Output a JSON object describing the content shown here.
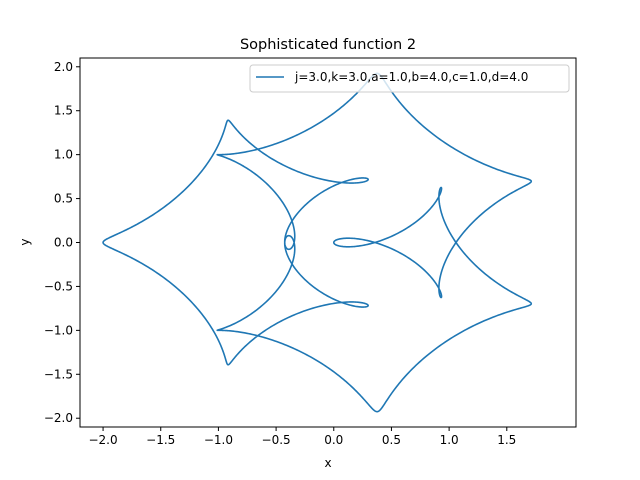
{
  "chart_data": {
    "type": "line",
    "title": "Sophisticated function 2",
    "xlabel": "x",
    "ylabel": "y",
    "xlim": [
      -2.2,
      2.1
    ],
    "ylim": [
      -2.1,
      2.1
    ],
    "xticks": [
      -2.0,
      -1.5,
      -1.0,
      -0.5,
      0.0,
      0.5,
      1.0,
      1.5
    ],
    "xtick_labels": [
      "−2.0",
      "−1.5",
      "−1.0",
      "−0.5",
      "0.0",
      "0.5",
      "1.0",
      "1.5"
    ],
    "yticks": [
      -2.0,
      -1.5,
      -1.0,
      -0.5,
      0.0,
      0.5,
      1.0,
      1.5,
      2.0
    ],
    "ytick_labels": [
      "−2.0",
      "−1.5",
      "−1.0",
      "−0.5",
      "0.0",
      "0.5",
      "1.0",
      "1.5",
      "2.0"
    ],
    "grid": false,
    "legend": "top-right",
    "series": [
      {
        "name": "j=3.0,k=3.0,a=1.0,b=4.0,c=1.0,d=4.0",
        "color": "#1f77b4",
        "equation": {
          "x": "cos(a*t) - cos(b*t)^j",
          "y": "sin(c*t) - sin(d*t)^k",
          "t_range": [
            0,
            6.283185307179586
          ],
          "a": 1.0,
          "b": 4.0,
          "c": 1.0,
          "d": 4.0,
          "j": 3.0,
          "k": 3.0
        }
      }
    ]
  }
}
